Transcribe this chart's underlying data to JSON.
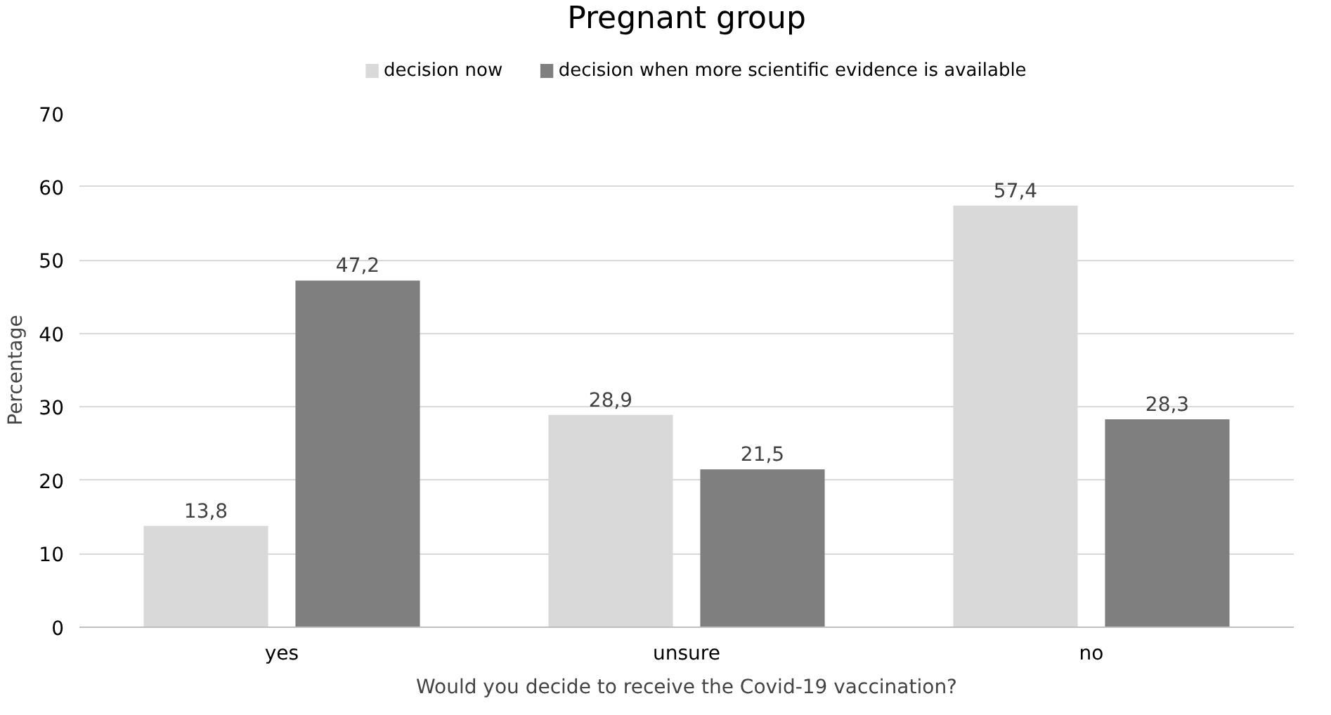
{
  "chart_data": {
    "type": "bar",
    "title": "Pregnant group",
    "xlabel": "Would you decide to receive the Covid-19 vaccination?",
    "ylabel": "Percentage",
    "categories": [
      "yes",
      "unsure",
      "no"
    ],
    "series": [
      {
        "name": "decision now",
        "color": "#d9d9d9",
        "values": [
          13.8,
          28.9,
          57.4
        ],
        "value_labels": [
          "13,8",
          "28,9",
          "57,4"
        ]
      },
      {
        "name": "decision when more scientific evidence is available",
        "color": "#7f7f7f",
        "values": [
          47.2,
          21.5,
          28.3
        ],
        "value_labels": [
          "47,2",
          "21,5",
          "28,3"
        ]
      }
    ],
    "ylim": [
      0,
      70
    ],
    "yticks": [
      0,
      10,
      20,
      30,
      40,
      50,
      60,
      70
    ],
    "grid": "y",
    "legend": "top"
  }
}
